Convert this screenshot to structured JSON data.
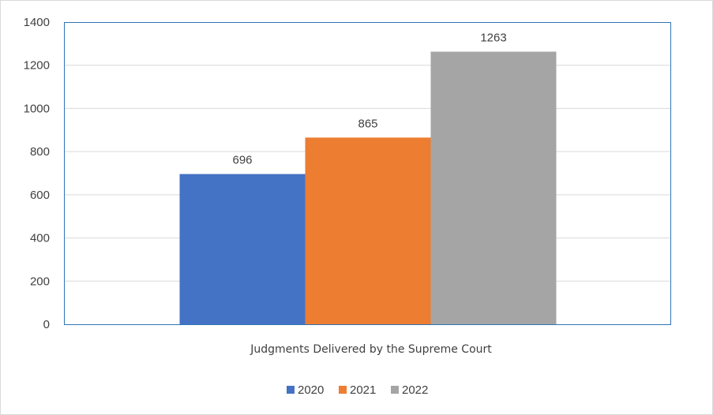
{
  "chart_data": {
    "type": "bar",
    "categories": [
      "Judgments Delivered by the Supreme Court"
    ],
    "series": [
      {
        "name": "2020",
        "values": [
          696
        ],
        "color": "#4472C4"
      },
      {
        "name": "2021",
        "values": [
          865
        ],
        "color": "#ED7D31"
      },
      {
        "name": "2022",
        "values": [
          1263
        ],
        "color": "#A5A5A5"
      }
    ],
    "ylim": [
      0,
      1400
    ],
    "yticks": [
      0,
      200,
      400,
      600,
      800,
      1000,
      1200,
      1400
    ],
    "data_labels": true,
    "grid": true,
    "legend_position": "bottom",
    "plot_border_color": "#2E75B6",
    "gridline_color": "#D9D9D9"
  }
}
